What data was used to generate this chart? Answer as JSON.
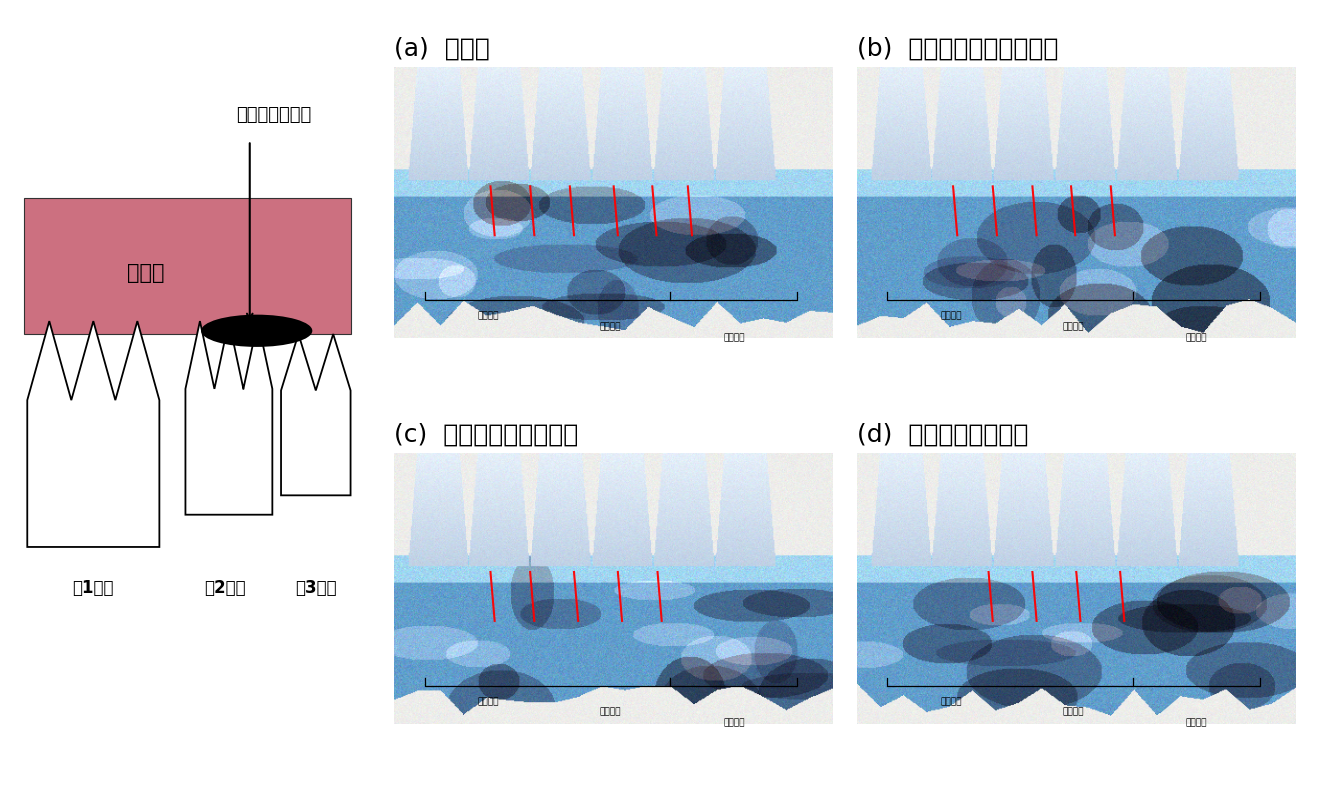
{
  "bg_color": "#ffffff",
  "title_annotation": "巻き付けた絹糸",
  "gum_label": "歯ぐき",
  "tooth_labels": [
    "第1臼歯",
    "第2臼歯",
    "第3臼歯"
  ],
  "panel_labels": [
    "(a)  無処置",
    "(b)  歯周病＋プラセボ塗布",
    "(c)  歯周病＋口腔内塗布",
    "(d)  歯周病＋胃内給与"
  ],
  "photo_tooth_labels": [
    "第１臼歯",
    "第２臼歯",
    "第３臼歯"
  ],
  "gum_color": "#cc7080",
  "panel_label_fontsize": 18
}
